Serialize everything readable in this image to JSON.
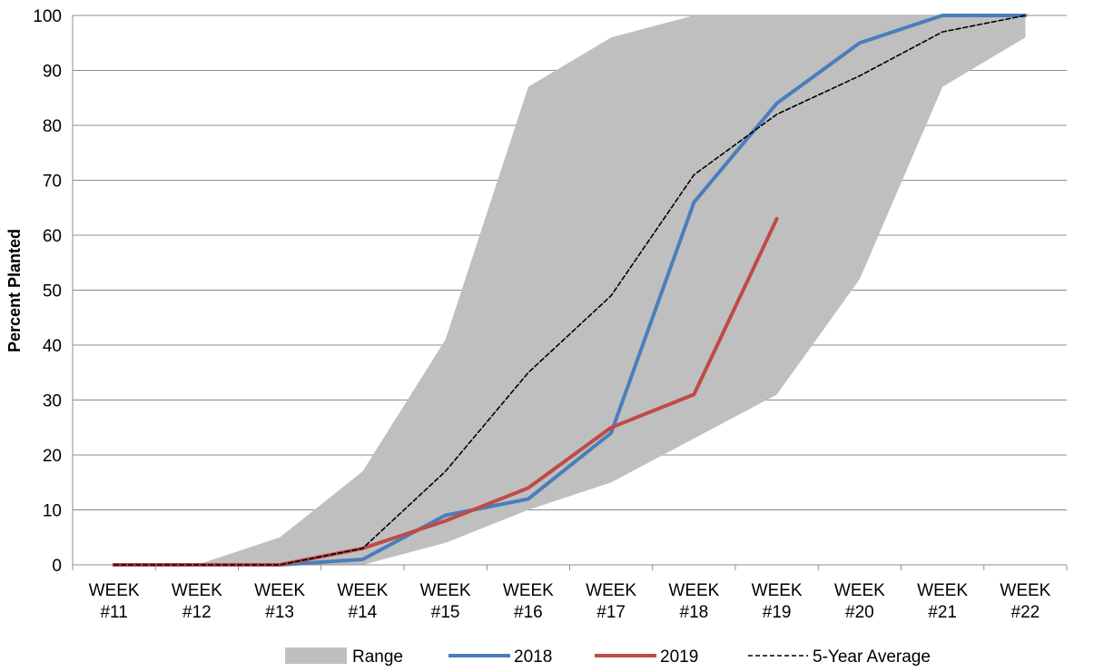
{
  "chart_data": {
    "type": "line",
    "ylabel": "Percent Planted",
    "xlabel": "",
    "ylim": [
      0,
      100
    ],
    "yticks": [
      0,
      10,
      20,
      30,
      40,
      50,
      60,
      70,
      80,
      90,
      100
    ],
    "grid": "horizontal",
    "legend_position": "bottom",
    "categories": [
      [
        "WEEK",
        "#11"
      ],
      [
        "WEEK",
        "#12"
      ],
      [
        "WEEK",
        "#13"
      ],
      [
        "WEEK",
        "#14"
      ],
      [
        "WEEK",
        "#15"
      ],
      [
        "WEEK",
        "#16"
      ],
      [
        "WEEK",
        "#17"
      ],
      [
        "WEEK",
        "#18"
      ],
      [
        "WEEK",
        "#19"
      ],
      [
        "WEEK",
        "#20"
      ],
      [
        "WEEK",
        "#21"
      ],
      [
        "WEEK",
        "#22"
      ]
    ],
    "range": {
      "name": "Range",
      "color": "#BFBFBF",
      "min": [
        0,
        0,
        0,
        0,
        4,
        10,
        15,
        23,
        31,
        52,
        87,
        96
      ],
      "max": [
        0,
        0,
        5,
        17,
        41,
        87,
        96,
        100,
        100,
        100,
        100,
        100
      ]
    },
    "series": [
      {
        "name": "2018",
        "color": "#4A7EBB",
        "style": "solid",
        "values": [
          0,
          0,
          0,
          1,
          9,
          12,
          24,
          66,
          84,
          95,
          100,
          100
        ]
      },
      {
        "name": "2019",
        "color": "#BE4B48",
        "style": "solid",
        "values": [
          0,
          0,
          0,
          3,
          8,
          14,
          25,
          31,
          63,
          null,
          null,
          null
        ]
      },
      {
        "name": "5-Year Average",
        "color": "#000000",
        "style": "dashed",
        "values": [
          0,
          0,
          0,
          3,
          17,
          35,
          49,
          71,
          82,
          89,
          97,
          100
        ]
      }
    ]
  }
}
